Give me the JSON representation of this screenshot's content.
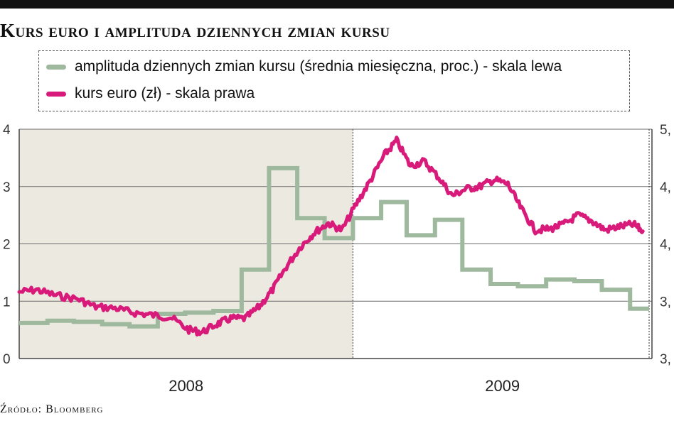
{
  "title": "Kurs euro i amplituda dziennych zmian kursu",
  "source": "Źródło: Bloomberg",
  "colors": {
    "amplitude": "#9fb99f",
    "eur_rate": "#d81b7a",
    "shade": "#eceae0",
    "grid": "#6b6b6b"
  },
  "chart_data": {
    "type": "line",
    "title": "Kurs euro i amplituda dziennych zmian kursu",
    "legend_position": "top",
    "grid": true,
    "x_categories": [
      "2008",
      "2009"
    ],
    "x_range": [
      "2008-01",
      "2009-11"
    ],
    "y_left": {
      "label": "",
      "ticks": [
        "4",
        "3",
        "2",
        "1",
        "0"
      ],
      "range": [
        0,
        4
      ]
    },
    "y_right": {
      "label": "",
      "ticks": [
        "5,",
        "4,",
        "4,",
        "3,",
        "3,"
      ],
      "range": [
        3.0,
        5.0
      ]
    },
    "series": [
      {
        "name": "amplituda dziennych zmian kursu (średnia miesięczna, proc.) - skala lewa",
        "axis": "left",
        "step": true,
        "x": [
          "2008-01",
          "2008-02",
          "2008-03",
          "2008-04",
          "2008-05",
          "2008-06",
          "2008-07",
          "2008-08",
          "2008-09",
          "2008-10",
          "2008-11",
          "2008-12",
          "2009-01",
          "2009-02",
          "2009-03",
          "2009-04",
          "2009-05",
          "2009-06",
          "2009-07",
          "2009-08",
          "2009-09",
          "2009-10",
          "2009-11"
        ],
        "values": [
          0.62,
          0.66,
          0.64,
          0.6,
          0.56,
          0.78,
          0.8,
          0.83,
          1.55,
          3.32,
          2.45,
          2.1,
          2.45,
          2.73,
          2.15,
          2.42,
          1.55,
          1.3,
          1.26,
          1.38,
          1.35,
          1.2,
          0.87
        ]
      },
      {
        "name": "kurs euro (zł) - skala prawa",
        "axis": "right",
        "x": [
          "2008-01-01",
          "2008-01-20",
          "2008-02-10",
          "2008-03-05",
          "2008-03-25",
          "2008-04-15",
          "2008-05-05",
          "2008-05-25",
          "2008-06-15",
          "2008-07-05",
          "2008-07-20",
          "2008-08-05",
          "2008-08-20",
          "2008-09-05",
          "2008-09-20",
          "2008-10-05",
          "2008-10-20",
          "2008-11-05",
          "2008-11-20",
          "2008-12-05",
          "2008-12-20",
          "2009-01-05",
          "2009-01-20",
          "2009-02-05",
          "2009-02-18",
          "2009-03-05",
          "2009-03-20",
          "2009-04-05",
          "2009-04-20",
          "2009-05-05",
          "2009-05-20",
          "2009-06-05",
          "2009-06-20",
          "2009-07-05",
          "2009-07-20",
          "2009-08-05",
          "2009-08-20",
          "2009-09-05",
          "2009-09-20",
          "2009-10-05",
          "2009-10-20",
          "2009-11-05",
          "2009-11-15"
        ],
        "values": [
          3.58,
          3.6,
          3.55,
          3.52,
          3.45,
          3.44,
          3.4,
          3.38,
          3.36,
          3.25,
          3.23,
          3.3,
          3.35,
          3.35,
          3.45,
          3.6,
          3.8,
          3.98,
          4.1,
          4.18,
          4.12,
          4.35,
          4.55,
          4.78,
          4.9,
          4.68,
          4.72,
          4.58,
          4.42,
          4.48,
          4.5,
          4.56,
          4.52,
          4.3,
          4.12,
          4.13,
          4.17,
          4.25,
          4.2,
          4.12,
          4.15,
          4.17,
          4.11
        ]
      }
    ]
  }
}
